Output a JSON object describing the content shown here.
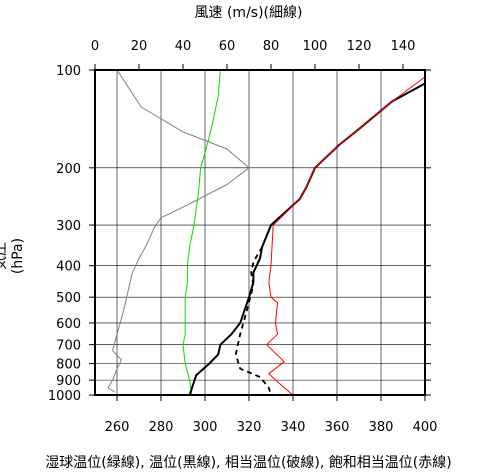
{
  "chart_data": {
    "type": "line",
    "title_top": "風速 (m/s)(細線)",
    "ylabel": "気圧(hPa)",
    "xlabel_bottom": "湿球温位(緑線), 温位(黒線), 相当温位(破線), 飽和相当温位(赤線)",
    "y_axis": {
      "scale": "log",
      "reversed": true,
      "range": [
        100,
        1000
      ],
      "ticks": [
        100,
        200,
        300,
        400,
        500,
        600,
        700,
        800,
        900,
        1000
      ]
    },
    "x_bottom": {
      "range": [
        250,
        400
      ],
      "ticks": [
        260,
        280,
        300,
        320,
        340,
        360,
        380,
        400
      ]
    },
    "x_top": {
      "range": [
        0,
        150
      ],
      "ticks": [
        0,
        20,
        40,
        60,
        80,
        100,
        120,
        140
      ]
    },
    "series": [
      {
        "color": "#808080",
        "width": 1,
        "dash": "",
        "axis": "top",
        "points": [
          [
            10,
            100
          ],
          [
            21,
            130
          ],
          [
            40,
            155
          ],
          [
            60,
            175
          ],
          [
            70,
            200
          ],
          [
            60,
            225
          ],
          [
            42,
            260
          ],
          [
            30,
            285
          ],
          [
            27,
            305
          ],
          [
            23,
            350
          ],
          [
            20,
            380
          ],
          [
            17,
            420
          ],
          [
            15,
            480
          ],
          [
            13,
            550
          ],
          [
            10,
            650
          ],
          [
            8,
            730
          ],
          [
            12,
            780
          ],
          [
            10,
            830
          ],
          [
            8,
            900
          ],
          [
            6,
            950
          ],
          [
            9,
            980
          ]
        ]
      },
      {
        "color": "#00dd00",
        "width": 1,
        "dash": "",
        "axis": "bottom",
        "points": [
          [
            307,
            100
          ],
          [
            306,
            120
          ],
          [
            304,
            140
          ],
          [
            302,
            160
          ],
          [
            300,
            180
          ],
          [
            298,
            200
          ],
          [
            297,
            240
          ],
          [
            295,
            300
          ],
          [
            293,
            350
          ],
          [
            292,
            400
          ],
          [
            292,
            450
          ],
          [
            291,
            500
          ],
          [
            291,
            550
          ],
          [
            291,
            600
          ],
          [
            291,
            650
          ],
          [
            290,
            700
          ],
          [
            291,
            800
          ],
          [
            293,
            900
          ],
          [
            294,
            1000
          ]
        ]
      },
      {
        "color": "#000000",
        "width": 2,
        "dash": "",
        "axis": "bottom",
        "points": [
          [
            400,
            110
          ],
          [
            385,
            125
          ],
          [
            371,
            150
          ],
          [
            361,
            170
          ],
          [
            350,
            200
          ],
          [
            346,
            230
          ],
          [
            343,
            250
          ],
          [
            330,
            300
          ],
          [
            326,
            350
          ],
          [
            325,
            380
          ],
          [
            322,
            420
          ],
          [
            322,
            450
          ],
          [
            320,
            500
          ],
          [
            316,
            600
          ],
          [
            312,
            650
          ],
          [
            307,
            700
          ],
          [
            306,
            750
          ],
          [
            302,
            800
          ],
          [
            296,
            870
          ],
          [
            293,
            1000
          ]
        ]
      },
      {
        "color": "#000000",
        "width": 1.8,
        "dash": "5,4",
        "axis": "bottom",
        "points": [
          [
            326,
            350
          ],
          [
            322,
            390
          ],
          [
            321,
            420
          ],
          [
            322,
            460
          ],
          [
            319,
            550
          ],
          [
            316,
            650
          ],
          [
            314,
            750
          ],
          [
            316,
            830
          ],
          [
            325,
            880
          ],
          [
            329,
            950
          ],
          [
            330,
            1000
          ]
        ]
      },
      {
        "color": "#ff0000",
        "width": 1,
        "dash": "",
        "axis": "bottom",
        "points": [
          [
            400,
            105
          ],
          [
            385,
            125
          ],
          [
            371,
            150
          ],
          [
            361,
            170
          ],
          [
            350,
            200
          ],
          [
            346,
            230
          ],
          [
            343,
            250
          ],
          [
            331,
            300
          ],
          [
            330,
            400
          ],
          [
            329,
            450
          ],
          [
            330,
            500
          ],
          [
            333,
            520
          ],
          [
            332,
            600
          ],
          [
            333,
            650
          ],
          [
            328,
            700
          ],
          [
            336,
            790
          ],
          [
            329,
            860
          ],
          [
            336,
            950
          ],
          [
            340,
            1000
          ]
        ]
      }
    ]
  }
}
